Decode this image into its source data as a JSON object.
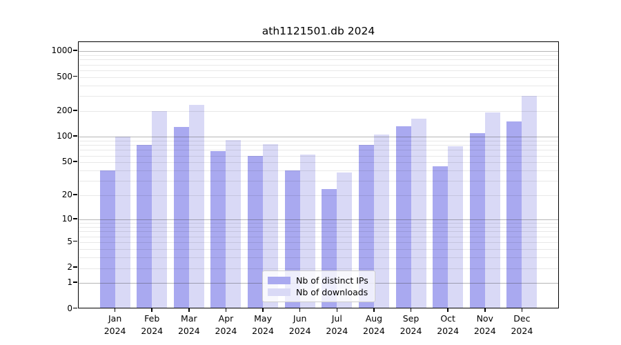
{
  "title": "ath1121501.db 2024",
  "chart_data": {
    "type": "bar",
    "title": "ath1121501.db 2024",
    "categories": [
      "Jan",
      "Feb",
      "Mar",
      "Apr",
      "May",
      "Jun",
      "Jul",
      "Aug",
      "Sep",
      "Oct",
      "Nov",
      "Dec"
    ],
    "category_year": "2024",
    "series": [
      {
        "name": "Nb of distinct IPs",
        "color": "#a9a9f0",
        "values": [
          40,
          80,
          130,
          68,
          59,
          40,
          24,
          80,
          132,
          45,
          110,
          152
        ]
      },
      {
        "name": "Nb of downloads",
        "color": "#d9d9f6",
        "values": [
          100,
          200,
          235,
          92,
          82,
          62,
          38,
          107,
          164,
          78,
          192,
          300
        ]
      }
    ],
    "yticks": [
      0,
      1,
      2,
      5,
      10,
      20,
      50,
      100,
      200,
      500,
      1000
    ],
    "scale": "log10(1+x)",
    "ylim": [
      0,
      1300
    ],
    "grid": true,
    "legend_position": "bottom-center"
  }
}
